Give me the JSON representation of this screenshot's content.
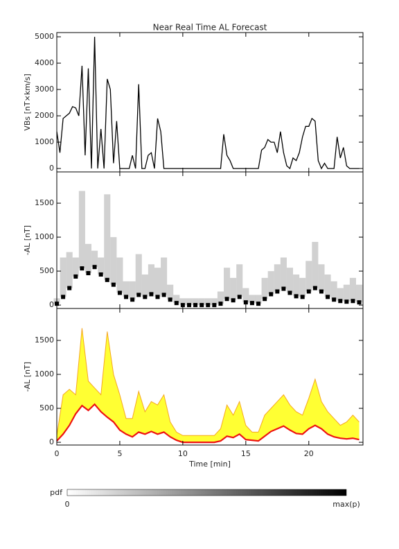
{
  "chart_data": [
    {
      "type": "line",
      "title": "Near Real Time AL Forecast",
      "ylabel": "VBs [nT×km/s]",
      "x": [
        0,
        0.25,
        0.5,
        0.75,
        1,
        1.25,
        1.5,
        1.75,
        2,
        2.25,
        2.5,
        2.75,
        3,
        3.25,
        3.5,
        3.75,
        4,
        4.25,
        4.5,
        4.75,
        5,
        5.25,
        5.5,
        5.75,
        6,
        6.25,
        6.5,
        6.75,
        7,
        7.25,
        7.5,
        7.75,
        8,
        8.25,
        8.5,
        8.75,
        9,
        9.25,
        9.5,
        9.75,
        10,
        10.25,
        10.5,
        10.75,
        11,
        11.25,
        11.5,
        11.75,
        12,
        12.25,
        12.5,
        12.75,
        13,
        13.25,
        13.5,
        13.75,
        14,
        14.25,
        14.5,
        14.75,
        15,
        15.25,
        15.5,
        15.75,
        16,
        16.25,
        16.5,
        16.75,
        17,
        17.25,
        17.5,
        17.75,
        18,
        18.25,
        18.5,
        18.75,
        19,
        19.25,
        19.5,
        19.75,
        20,
        20.25,
        20.5,
        20.75,
        21,
        21.25,
        21.5,
        21.75,
        22,
        22.25,
        22.5,
        22.75,
        23,
        23.25,
        23.5,
        23.75,
        24
      ],
      "series": [
        {
          "color": "#000000",
          "values": [
            1400,
            600,
            1900,
            2000,
            2100,
            2350,
            2300,
            2000,
            3900,
            500,
            3800,
            0,
            5000,
            0,
            1500,
            0,
            3400,
            3000,
            200,
            1800,
            0,
            0,
            0,
            0,
            500,
            0,
            3200,
            0,
            0,
            500,
            600,
            0,
            1900,
            1400,
            0,
            0,
            0,
            0,
            0,
            0,
            0,
            0,
            0,
            0,
            0,
            0,
            0,
            0,
            0,
            0,
            0,
            0,
            0,
            1300,
            500,
            300,
            0,
            0,
            0,
            0,
            0,
            0,
            0,
            0,
            0,
            700,
            800,
            1100,
            1000,
            1000,
            600,
            1400,
            600,
            100,
            0,
            400,
            300,
            600,
            1200,
            1600,
            1600,
            1900,
            1800,
            300,
            0,
            200,
            0,
            0,
            0,
            1200,
            400,
            800,
            100,
            0,
            0,
            0,
            0
          ]
        }
      ],
      "xlim": [
        0,
        24.3
      ],
      "xticks": [
        0,
        5,
        10,
        15,
        20
      ],
      "ylim": [
        -130,
        5160
      ],
      "yticks": [
        0,
        1000,
        2000,
        3000,
        4000,
        5000
      ]
    },
    {
      "type": "density",
      "ylabel": "-AL [nT]",
      "x": [
        0,
        0.5,
        1,
        1.5,
        2,
        2.5,
        3,
        3.5,
        4,
        4.5,
        5,
        5.5,
        6,
        6.5,
        7,
        7.5,
        8,
        8.5,
        9,
        9.5,
        10,
        10.5,
        11,
        11.5,
        12,
        12.5,
        13,
        13.5,
        14,
        14.5,
        15,
        15.5,
        16,
        16.5,
        17,
        17.5,
        18,
        18.5,
        19,
        19.5,
        20,
        20.5,
        21,
        21.5,
        22,
        22.5,
        23,
        23.5,
        24
      ],
      "series": [
        {
          "color": "#000000",
          "values": [
            20,
            120,
            250,
            420,
            540,
            470,
            560,
            450,
            370,
            300,
            180,
            120,
            80,
            150,
            120,
            160,
            120,
            150,
            80,
            30,
            0,
            0,
            0,
            0,
            0,
            0,
            20,
            90,
            70,
            120,
            40,
            30,
            20,
            90,
            160,
            200,
            240,
            180,
            130,
            120,
            200,
            250,
            200,
            120,
            80,
            60,
            50,
            60,
            40
          ]
        },
        {
          "color": "#9a9a9a",
          "values": [
            100,
            700,
            780,
            700,
            1680,
            900,
            800,
            700,
            1630,
            1000,
            700,
            350,
            350,
            750,
            450,
            600,
            550,
            700,
            300,
            150,
            100,
            100,
            100,
            100,
            100,
            100,
            200,
            550,
            400,
            600,
            250,
            150,
            150,
            400,
            500,
            600,
            700,
            550,
            450,
            400,
            650,
            930,
            600,
            450,
            350,
            250,
            300,
            400,
            300
          ]
        }
      ],
      "xlim": [
        0,
        24.3
      ],
      "xticks": [
        0,
        5,
        10,
        15,
        20
      ],
      "ylim": [
        -50,
        1960
      ],
      "yticks": [
        0,
        500,
        1000,
        1500
      ]
    },
    {
      "type": "band",
      "ylabel": "-AL [nT]",
      "xlabel": "Time [min]",
      "x": [
        0,
        0.5,
        1,
        1.5,
        2,
        2.5,
        3,
        3.5,
        4,
        4.5,
        5,
        5.5,
        6,
        6.5,
        7,
        7.5,
        8,
        8.5,
        9,
        9.5,
        10,
        10.5,
        11,
        11.5,
        12,
        12.5,
        13,
        13.5,
        14,
        14.5,
        15,
        15.5,
        16,
        16.5,
        17,
        17.5,
        18,
        18.5,
        19,
        19.5,
        20,
        20.5,
        21,
        21.5,
        22,
        22.5,
        23,
        23.5,
        24
      ],
      "series": [
        {
          "color": "#ee1111",
          "values": [
            20,
            120,
            250,
            420,
            540,
            470,
            560,
            450,
            370,
            300,
            180,
            120,
            80,
            150,
            120,
            160,
            120,
            150,
            80,
            30,
            0,
            0,
            0,
            0,
            0,
            0,
            20,
            90,
            70,
            120,
            40,
            30,
            20,
            90,
            160,
            200,
            240,
            180,
            130,
            120,
            200,
            250,
            200,
            120,
            80,
            60,
            50,
            60,
            40
          ]
        },
        {
          "color": "#f5a623",
          "values": [
            100,
            700,
            780,
            700,
            1680,
            900,
            800,
            700,
            1630,
            1000,
            700,
            350,
            350,
            750,
            450,
            600,
            550,
            700,
            300,
            150,
            100,
            100,
            100,
            100,
            100,
            100,
            200,
            550,
            400,
            600,
            250,
            150,
            150,
            400,
            500,
            600,
            700,
            550,
            450,
            400,
            650,
            930,
            600,
            450,
            350,
            250,
            300,
            400,
            300
          ]
        }
      ],
      "fill": "#ffff33",
      "xlim": [
        0,
        24.3
      ],
      "xticks": [
        0,
        5,
        10,
        15,
        20
      ],
      "ylim": [
        -40,
        1970
      ],
      "yticks": [
        0,
        500,
        1000,
        1500
      ]
    }
  ],
  "colorbar": {
    "label": "pdf",
    "min_label": "0",
    "max_label": "max(p)"
  }
}
